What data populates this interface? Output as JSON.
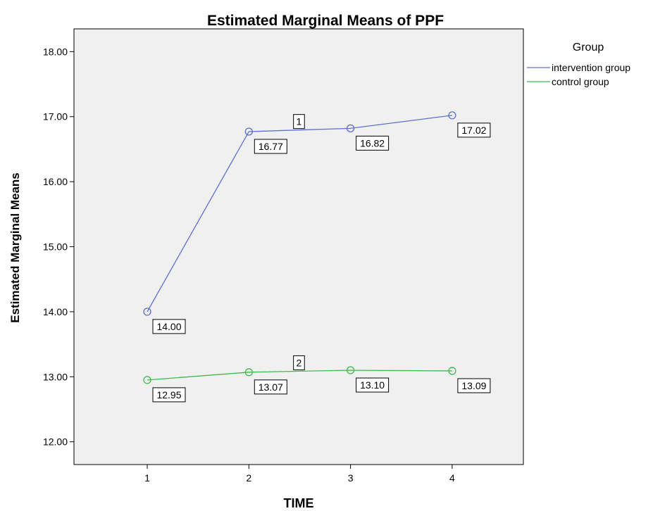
{
  "chart_data": {
    "type": "line",
    "title": "Estimated Marginal Means of PPF",
    "xlabel": "TIME",
    "ylabel": "Estimated Marginal Means",
    "categories": [
      "1",
      "2",
      "3",
      "4"
    ],
    "ylim": [
      11.65,
      18.35
    ],
    "yticks": [
      12,
      13,
      14,
      15,
      16,
      17,
      18
    ],
    "ytick_labels": [
      "12.00",
      "13.00",
      "14.00",
      "15.00",
      "16.00",
      "17.00",
      "18.00"
    ],
    "grid": false,
    "plot_background": "#f0f0f0",
    "legend": {
      "title": "Group",
      "position": "right"
    },
    "series": [
      {
        "name": "intervention group",
        "color": "#5b6fd1",
        "marker": "circle",
        "values": [
          14.0,
          16.77,
          16.82,
          17.02
        ],
        "value_labels": [
          "14.00",
          "16.77",
          "16.82",
          "17.02"
        ],
        "line_label": "1"
      },
      {
        "name": "control group",
        "color": "#3fba4d",
        "marker": "circle",
        "values": [
          12.95,
          13.07,
          13.1,
          13.09
        ],
        "value_labels": [
          "12.95",
          "13.07",
          "13.10",
          "13.09"
        ],
        "line_label": "2"
      }
    ]
  }
}
